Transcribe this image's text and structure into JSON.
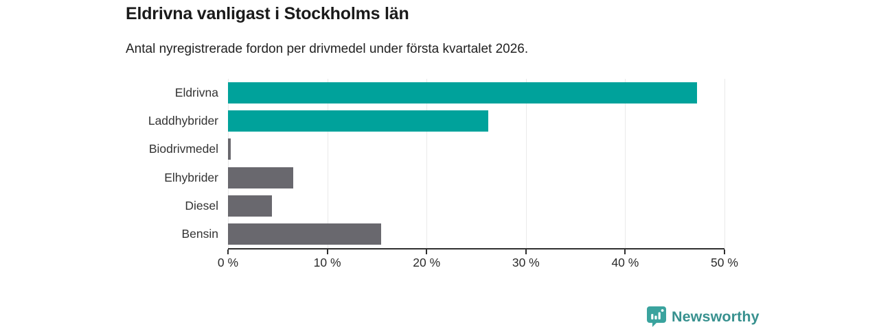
{
  "header": {
    "title": "Eldrivna vanligast i Stockholms län",
    "subtitle": "Antal nyregistrerade fordon per drivmedel under första kvartalet 2026."
  },
  "chart_data": {
    "type": "bar",
    "orientation": "horizontal",
    "title": "Eldrivna vanligast i Stockholms län",
    "subtitle": "Antal nyregistrerade fordon per drivmedel under första kvartalet 2026.",
    "categories": [
      "Eldrivna",
      "Laddhybrider",
      "Biodrivmedel",
      "Elhybrider",
      "Diesel",
      "Bensin"
    ],
    "values": [
      47.2,
      26.2,
      0.3,
      6.6,
      4.4,
      15.4
    ],
    "unit": "%",
    "xlim": [
      0,
      50
    ],
    "x_tick_values": [
      0,
      10,
      20,
      30,
      40,
      50
    ],
    "x_tick_labels": [
      "0 %",
      "10 %",
      "20 %",
      "30 %",
      "40 %",
      "50 %"
    ],
    "bar_colors": [
      "#00a29b",
      "#00a29b",
      "#69686e",
      "#69686e",
      "#69686e",
      "#69686e"
    ],
    "grid": true,
    "legend": "none",
    "accent_color": "#00a29b",
    "neutral_color": "#69686e"
  },
  "footer": {
    "brand": "Newsworthy",
    "brand_color": "#38918f",
    "logo_icon": "newsworthy-bar-chart-pin-icon",
    "logo_icon_color": "#3aa39e"
  }
}
